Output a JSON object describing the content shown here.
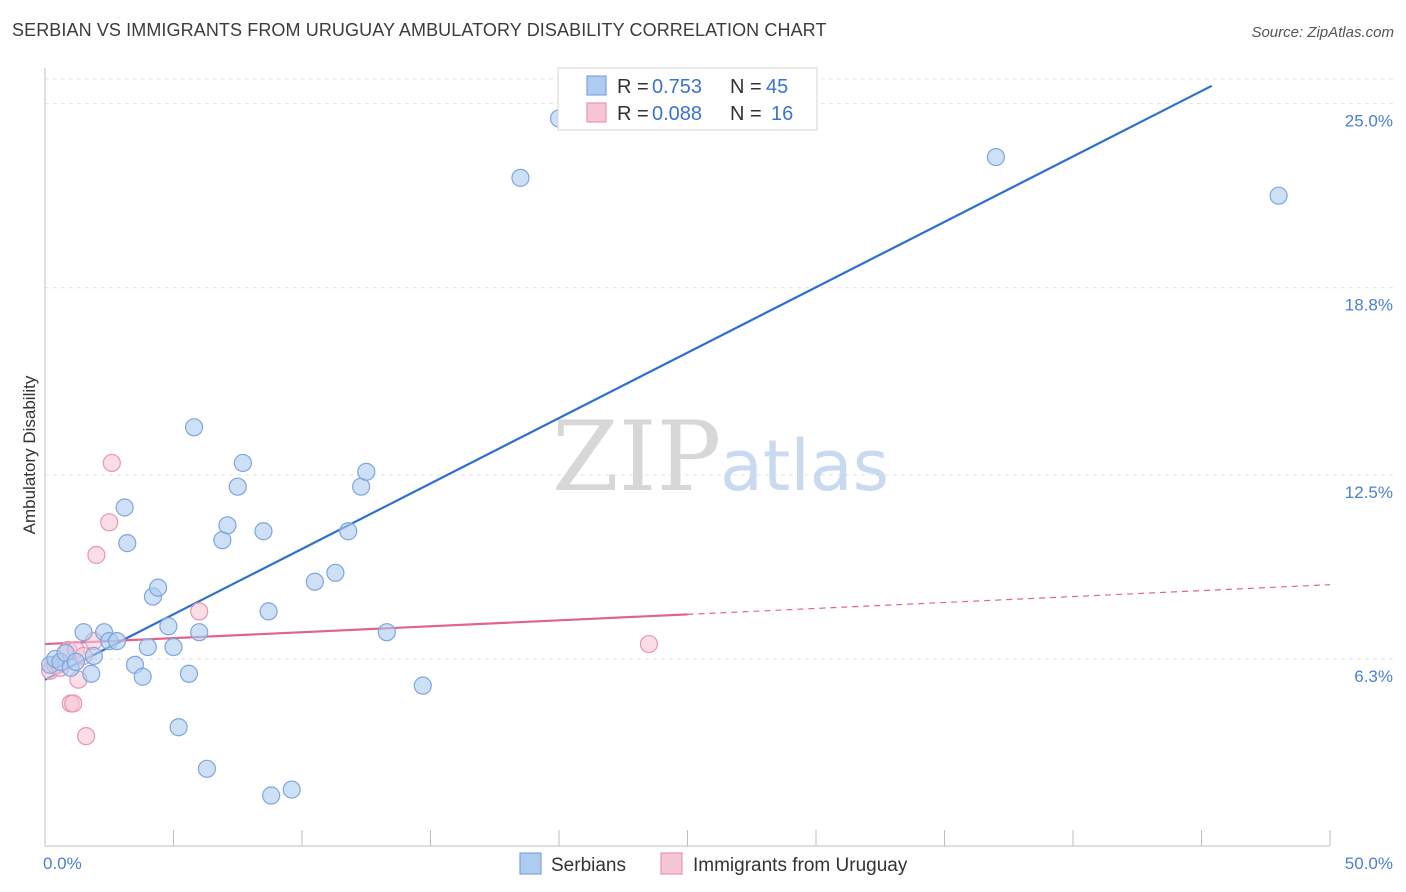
{
  "title": "SERBIAN VS IMMIGRANTS FROM URUGUAY AMBULATORY DISABILITY CORRELATION CHART",
  "source": "Source: ZipAtlas.com",
  "watermark": {
    "zip": "ZIP",
    "atlas": "atlas"
  },
  "legend": {
    "r_label": "R =",
    "n_label": "N =",
    "entries": [
      {
        "r": "0.753",
        "n": "45"
      },
      {
        "r": "0.088",
        "n": "16"
      }
    ]
  },
  "colors": {
    "serbians_fill": "#aecbf0",
    "serbians_stroke": "#7ea6dc",
    "serbians_line": "#2d6fcd",
    "uruguay_fill": "#f7c6d6",
    "uruguay_stroke": "#e896b2",
    "uruguay_line": "#e0648f"
  },
  "chart_data": {
    "type": "scatter",
    "title": "SERBIAN VS IMMIGRANTS FROM URUGUAY AMBULATORY DISABILITY CORRELATION CHART",
    "xlabel": "",
    "ylabel": "Ambulatory Disability",
    "xlim": [
      0,
      50
    ],
    "ylim": [
      0,
      26.2
    ],
    "x_tick_labels": [
      "0.0%",
      "50.0%"
    ],
    "y_ticks": [
      6.3,
      12.5,
      18.8,
      25.0
    ],
    "y_tick_labels": [
      "6.3%",
      "12.5%",
      "18.8%",
      "25.0%"
    ],
    "grid": true,
    "legend_position": "bottom",
    "series": [
      {
        "name": "Serbians",
        "points": [
          [
            0.2,
            6.1
          ],
          [
            0.4,
            6.3
          ],
          [
            0.6,
            6.2
          ],
          [
            0.8,
            6.5
          ],
          [
            1.0,
            6.0
          ],
          [
            1.2,
            6.2
          ],
          [
            1.5,
            7.2
          ],
          [
            1.8,
            5.8
          ],
          [
            1.9,
            6.4
          ],
          [
            2.3,
            7.2
          ],
          [
            2.5,
            6.9
          ],
          [
            2.8,
            6.9
          ],
          [
            3.1,
            11.4
          ],
          [
            3.2,
            10.2
          ],
          [
            3.5,
            6.1
          ],
          [
            3.8,
            5.7
          ],
          [
            4.0,
            6.7
          ],
          [
            4.2,
            8.4
          ],
          [
            4.4,
            8.7
          ],
          [
            4.8,
            7.4
          ],
          [
            5.0,
            6.7
          ],
          [
            5.2,
            4.0
          ],
          [
            5.6,
            5.8
          ],
          [
            5.8,
            14.1
          ],
          [
            6.0,
            7.2
          ],
          [
            6.3,
            2.6
          ],
          [
            6.9,
            10.3
          ],
          [
            7.1,
            10.8
          ],
          [
            7.5,
            12.1
          ],
          [
            7.7,
            12.9
          ],
          [
            8.5,
            10.6
          ],
          [
            8.7,
            7.9
          ],
          [
            8.8,
            1.7
          ],
          [
            9.6,
            1.9
          ],
          [
            10.5,
            8.9
          ],
          [
            11.3,
            9.2
          ],
          [
            11.8,
            10.6
          ],
          [
            12.3,
            12.1
          ],
          [
            12.5,
            12.6
          ],
          [
            13.3,
            7.2
          ],
          [
            14.7,
            5.4
          ],
          [
            18.5,
            22.5
          ],
          [
            20.0,
            24.5
          ],
          [
            37.0,
            23.2
          ],
          [
            48.0,
            21.9
          ]
        ],
        "trendline": {
          "x": [
            0,
            45.4
          ],
          "y": [
            5.6,
            25.6
          ]
        }
      },
      {
        "name": "Immigrants from Uruguay",
        "points": [
          [
            0.2,
            5.9
          ],
          [
            0.4,
            6.1
          ],
          [
            0.6,
            6.0
          ],
          [
            0.9,
            6.6
          ],
          [
            1.2,
            6.6
          ],
          [
            1.5,
            6.4
          ],
          [
            1.0,
            4.8
          ],
          [
            1.1,
            4.8
          ],
          [
            1.3,
            5.6
          ],
          [
            1.6,
            3.7
          ],
          [
            1.9,
            6.9
          ],
          [
            2.0,
            9.8
          ],
          [
            2.5,
            10.9
          ],
          [
            2.6,
            12.9
          ],
          [
            6.0,
            7.9
          ],
          [
            23.5,
            6.8
          ]
        ],
        "trendline": {
          "x": [
            0,
            25
          ],
          "y": [
            6.8,
            7.8
          ]
        },
        "trendline_dashed": {
          "x": [
            25,
            50
          ],
          "y": [
            7.8,
            8.8
          ]
        }
      }
    ]
  }
}
